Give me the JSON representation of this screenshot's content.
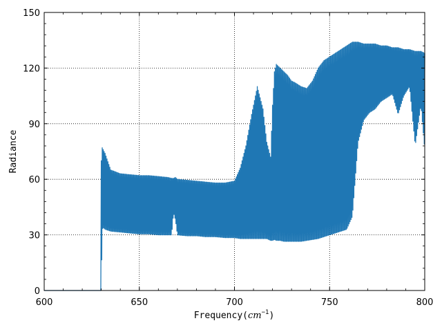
{
  "chart_data": {
    "type": "line",
    "title": "",
    "xlabel": "Frequency(",
    "xlabel_unit": "cm",
    "xlabel_unit_exp": "−1",
    "xlabel_close": ")",
    "ylabel": "Radiance",
    "xlim": [
      600,
      800
    ],
    "ylim": [
      0,
      150
    ],
    "xticks": [
      600,
      650,
      700,
      750,
      800
    ],
    "yticks": [
      0,
      30,
      60,
      90,
      120,
      150
    ],
    "grid": true,
    "grid_style": "dotted",
    "legend": "none",
    "line_color": "#1f77b4",
    "series": [
      {
        "x": [
          600,
          605,
          610,
          615,
          620,
          625,
          629.9,
          630,
          630.5,
          631,
          632,
          635,
          640,
          645,
          650,
          655,
          660,
          665,
          667,
          668,
          669,
          670,
          675,
          680,
          685,
          690,
          695,
          700,
          703,
          706,
          709,
          712,
          715,
          717,
          719,
          720,
          721,
          722,
          724,
          726,
          728,
          730,
          732,
          735,
          738,
          741,
          744,
          747,
          750,
          753,
          756,
          759,
          762,
          765,
          768,
          771,
          774,
          777,
          780,
          783,
          786,
          789,
          792,
          795,
          798,
          800
        ],
        "y_max": [
          0,
          0,
          0,
          0,
          0,
          0,
          0,
          70,
          77,
          76,
          74,
          65,
          63,
          62.5,
          62,
          62,
          61.5,
          61,
          60.5,
          60.5,
          61,
          60,
          59.5,
          59,
          58.5,
          58,
          58,
          59,
          66,
          78,
          95,
          110,
          98,
          80,
          72,
          100,
          118,
          122,
          120,
          118,
          116,
          113,
          112,
          110,
          109,
          113,
          120,
          124,
          126,
          128,
          130,
          132,
          134,
          134,
          133,
          133,
          133,
          132,
          132,
          131,
          131,
          130,
          130,
          129,
          129,
          128
        ],
        "y_min": [
          0,
          0,
          0,
          0,
          0,
          0,
          0,
          0,
          33,
          34,
          33,
          32,
          31.5,
          31,
          30.5,
          30.5,
          30,
          30,
          30,
          42,
          38,
          30,
          29.5,
          29.5,
          29,
          29,
          28.5,
          28.5,
          28,
          28,
          28,
          28,
          28,
          28,
          27,
          27,
          27.5,
          27,
          27,
          26.5,
          26.5,
          26.5,
          26.5,
          26.5,
          27,
          27.5,
          28,
          29,
          30,
          31,
          32,
          33,
          40,
          80,
          92,
          96,
          98,
          102,
          104,
          106,
          95,
          105,
          110,
          78,
          100,
          76
        ]
      }
    ]
  }
}
